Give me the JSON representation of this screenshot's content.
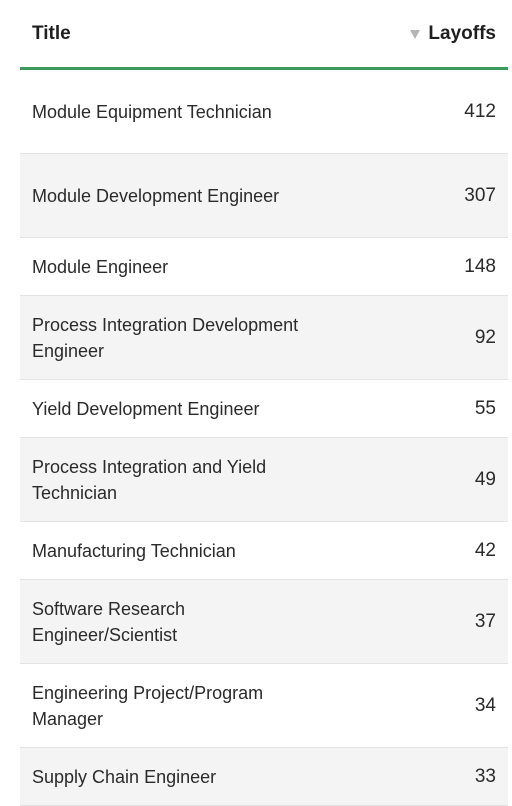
{
  "table": {
    "columns": {
      "title": "Title",
      "layoffs": "Layoffs",
      "sort_icon": "sort-descending-icon"
    },
    "rows": [
      {
        "title": "Module Equipment Technician",
        "layoffs": "412"
      },
      {
        "title": "Module Development Engineer",
        "layoffs": "307"
      },
      {
        "title": "Module Engineer",
        "layoffs": "148"
      },
      {
        "title": "Process Integration Development Engineer",
        "layoffs": "92"
      },
      {
        "title": "Yield Development Engineer",
        "layoffs": "55"
      },
      {
        "title": "Process Integration and Yield Technician",
        "layoffs": "49"
      },
      {
        "title": "Manufacturing Technician",
        "layoffs": "42"
      },
      {
        "title": "Software Research Engineer/Scientist",
        "layoffs": "37"
      },
      {
        "title": "Engineering Project/Program Manager",
        "layoffs": "34"
      },
      {
        "title": "Supply Chain Engineer",
        "layoffs": "33"
      }
    ]
  },
  "colors": {
    "header_rule": "#3b9a5b",
    "row_alt": "#f4f4f4",
    "sort_icon": "#b5b5b5"
  }
}
